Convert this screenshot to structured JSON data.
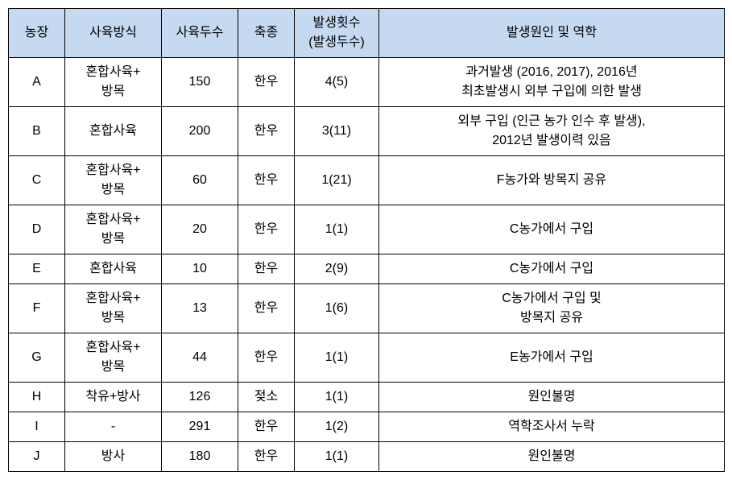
{
  "table": {
    "columns": [
      "농장",
      "사육방식",
      "사육두수",
      "축종",
      "발생횟수\n(발생두수)",
      "발생원인 및 역학"
    ],
    "rows": [
      {
        "farm": "A",
        "method": "혼합사육+\n방목",
        "count": "150",
        "species": "한우",
        "occur": "4(5)",
        "cause": "과거발생 (2016, 2017), 2016년\n최초발생시 외부 구입에 의한 발생"
      },
      {
        "farm": "B",
        "method": "혼합사육",
        "count": "200",
        "species": "한우",
        "occur": "3(11)",
        "cause": "외부 구입 (인근 농가 인수 후 발생),\n2012년 발생이력 있음"
      },
      {
        "farm": "C",
        "method": "혼합사육+\n방목",
        "count": "60",
        "species": "한우",
        "occur": "1(21)",
        "cause": "F농가와 방목지 공유"
      },
      {
        "farm": "D",
        "method": "혼합사육+\n방목",
        "count": "20",
        "species": "한우",
        "occur": "1(1)",
        "cause": "C농가에서 구입"
      },
      {
        "farm": "E",
        "method": "혼합사육",
        "count": "10",
        "species": "한우",
        "occur": "2(9)",
        "cause": "C농가에서 구입"
      },
      {
        "farm": "F",
        "method": "혼합사육+\n방목",
        "count": "13",
        "species": "한우",
        "occur": "1(6)",
        "cause": "C농가에서 구입 및\n방목지 공유"
      },
      {
        "farm": "G",
        "method": "혼합사육+\n방목",
        "count": "44",
        "species": "한우",
        "occur": "1(1)",
        "cause": "E농가에서 구입"
      },
      {
        "farm": "H",
        "method": "착유+방사",
        "count": "126",
        "species": "젖소",
        "occur": "1(1)",
        "cause": "원인불명"
      },
      {
        "farm": "I",
        "method": "-",
        "count": "291",
        "species": "한우",
        "occur": "1(2)",
        "cause": "역학조사서 누락"
      },
      {
        "farm": "J",
        "method": "방사",
        "count": "180",
        "species": "한우",
        "occur": "1(1)",
        "cause": "원인불명"
      }
    ],
    "header_bg": "#c5d9f1",
    "border_color": "#000000",
    "font_family": "Malgun Gothic",
    "font_size": 16
  }
}
